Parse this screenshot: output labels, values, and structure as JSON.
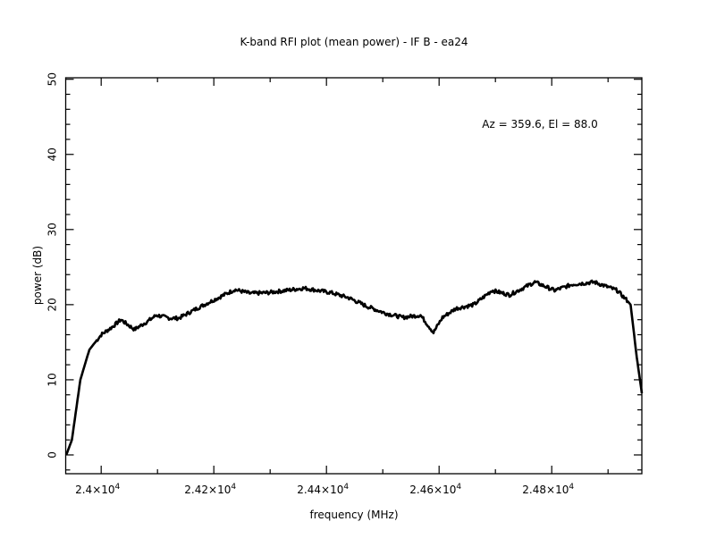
{
  "chart_data": {
    "type": "line",
    "title": "K-band RFI plot (mean power) - IF B - ea24",
    "xlabel": "frequency (MHz)",
    "ylabel": "power (dB)",
    "annotation": "Az = 359.6, El = 88.0",
    "xlim": [
      23937,
      24960
    ],
    "ylim": [
      -2.5,
      50.2
    ],
    "grid": false,
    "x_ticks": [
      {
        "value": 24000,
        "mantissa": "2.4",
        "times": "×10",
        "exp": "4"
      },
      {
        "value": 24200,
        "mantissa": "2.42",
        "times": "×10",
        "exp": "4"
      },
      {
        "value": 24400,
        "mantissa": "2.44",
        "times": "×10",
        "exp": "4"
      },
      {
        "value": 24600,
        "mantissa": "2.46",
        "times": "×10",
        "exp": "4"
      },
      {
        "value": 24800,
        "mantissa": "2.48",
        "times": "×10",
        "exp": "4"
      }
    ],
    "y_ticks": [
      {
        "value": 0,
        "label": "0"
      },
      {
        "value": 10,
        "label": "10"
      },
      {
        "value": 20,
        "label": "20"
      },
      {
        "value": 30,
        "label": "30"
      },
      {
        "value": 40,
        "label": "40"
      },
      {
        "value": 50,
        "label": "50"
      }
    ],
    "series": [
      {
        "name": "mean power",
        "x": [
          23938,
          23948,
          23963,
          23979,
          24000,
          24019,
          24035,
          24059,
          24083,
          24098,
          24122,
          24138,
          24170,
          24202,
          24237,
          24265,
          24297,
          24360,
          24408,
          24440,
          24471,
          24503,
          24535,
          24567,
          24590,
          24606,
          24630,
          24662,
          24694,
          24725,
          24770,
          24805,
          24837,
          24876,
          24916,
          24932,
          24940,
          24951,
          24960
        ],
        "y": [
          0,
          2,
          10,
          14,
          16,
          17,
          18,
          16.7,
          17.8,
          18.6,
          18.2,
          18.2,
          19.5,
          20.7,
          22,
          21.5,
          21.6,
          22.2,
          21.6,
          20.9,
          19.8,
          18.9,
          18.3,
          18.6,
          16.3,
          18.3,
          19.5,
          20,
          21.9,
          21.3,
          23,
          21.9,
          22.7,
          23,
          21.9,
          20.7,
          20,
          13,
          8.2
        ]
      }
    ]
  }
}
